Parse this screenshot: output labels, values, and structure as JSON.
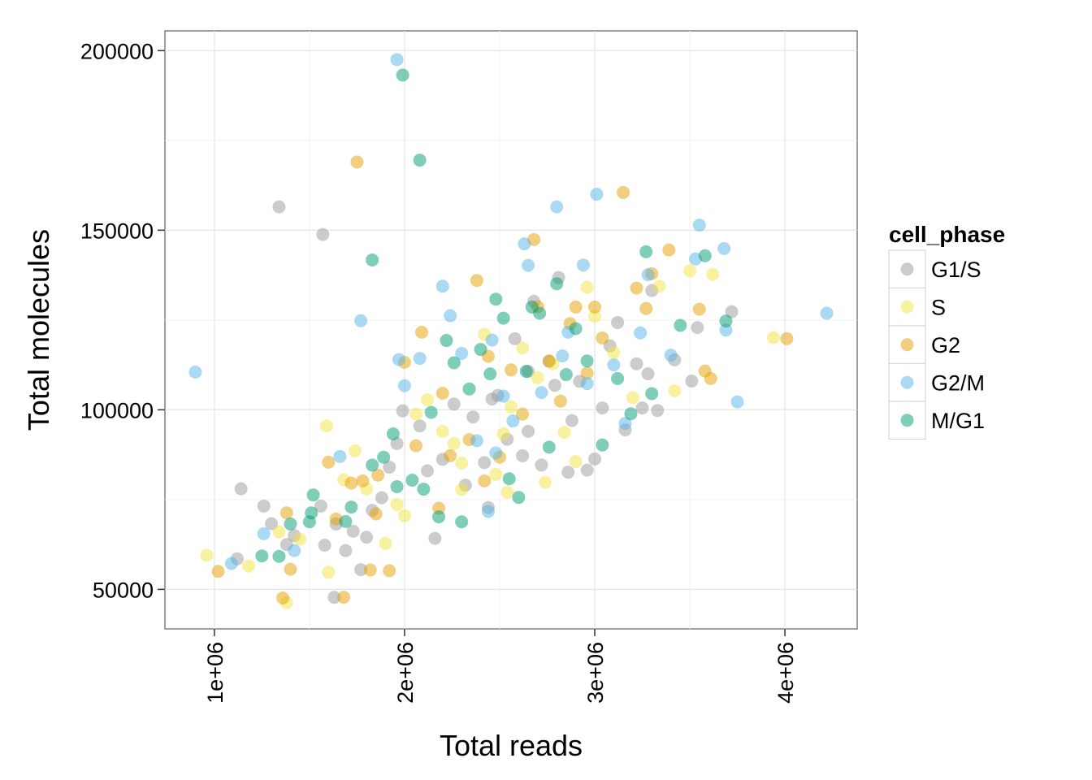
{
  "chart_data": {
    "type": "scatter",
    "title": "",
    "xlabel": "Total reads",
    "ylabel": "Total molecules",
    "xlim": [
      740000,
      4380000
    ],
    "ylim": [
      39000,
      205500
    ],
    "xticks": [
      1000000,
      2000000,
      3000000,
      4000000
    ],
    "xtick_labels": [
      "1e+06",
      "2e+06",
      "3e+06",
      "4e+06"
    ],
    "yticks": [
      50000,
      100000,
      150000,
      200000
    ],
    "ytick_labels": [
      "50000",
      "100000",
      "150000",
      "200000"
    ],
    "grid": true,
    "legend": {
      "title": "cell_phase",
      "position": "right"
    },
    "series": [
      {
        "name": "G1/S",
        "color": "#999999",
        "points": [
          [
            1340000,
            156500
          ],
          [
            1570000,
            148800
          ],
          [
            1140000,
            78000
          ],
          [
            1120000,
            58500
          ],
          [
            1260000,
            73200
          ],
          [
            1300000,
            68300
          ],
          [
            1380000,
            62500
          ],
          [
            1420000,
            65000
          ],
          [
            1560000,
            73200
          ],
          [
            1580000,
            62300
          ],
          [
            1640000,
            68200
          ],
          [
            1690000,
            60800
          ],
          [
            1730000,
            66200
          ],
          [
            1770000,
            55500
          ],
          [
            1800000,
            64500
          ],
          [
            1830000,
            72000
          ],
          [
            1880000,
            75500
          ],
          [
            1920000,
            84000
          ],
          [
            1960000,
            90600
          ],
          [
            1990000,
            99700
          ],
          [
            2080000,
            95500
          ],
          [
            2120000,
            83000
          ],
          [
            2160000,
            64200
          ],
          [
            2200000,
            86200
          ],
          [
            2260000,
            101600
          ],
          [
            2320000,
            79000
          ],
          [
            2360000,
            98000
          ],
          [
            2420000,
            85300
          ],
          [
            2440000,
            72800
          ],
          [
            2490000,
            104000
          ],
          [
            2540000,
            91800
          ],
          [
            2580000,
            119800
          ],
          [
            2620000,
            87200
          ],
          [
            2650000,
            110700
          ],
          [
            2680000,
            130200
          ],
          [
            2720000,
            84600
          ],
          [
            2760000,
            113500
          ],
          [
            2790000,
            106800
          ],
          [
            2810000,
            136800
          ],
          [
            2860000,
            82600
          ],
          [
            2880000,
            97000
          ],
          [
            2920000,
            107900
          ],
          [
            2960000,
            83200
          ],
          [
            3000000,
            86300
          ],
          [
            3040000,
            100500
          ],
          [
            3080000,
            117800
          ],
          [
            3120000,
            124300
          ],
          [
            3160000,
            94400
          ],
          [
            3220000,
            112800
          ],
          [
            3250000,
            100500
          ],
          [
            3280000,
            110000
          ],
          [
            3300000,
            133200
          ],
          [
            3330000,
            99800
          ],
          [
            3420000,
            113900
          ],
          [
            3510000,
            108000
          ],
          [
            3540000,
            122900
          ],
          [
            3720000,
            127300
          ],
          [
            1630000,
            47800
          ],
          [
            2460000,
            103000
          ],
          [
            2650000,
            94000
          ]
        ]
      },
      {
        "name": "S",
        "color": "#F0E442",
        "points": [
          [
            960000,
            59500
          ],
          [
            1180000,
            56500
          ],
          [
            1340000,
            66000
          ],
          [
            1380000,
            46300
          ],
          [
            1450000,
            64000
          ],
          [
            1590000,
            95500
          ],
          [
            1600000,
            54800
          ],
          [
            1680000,
            80500
          ],
          [
            1740000,
            88600
          ],
          [
            1800000,
            78000
          ],
          [
            1900000,
            62800
          ],
          [
            1960000,
            73600
          ],
          [
            2000000,
            70500
          ],
          [
            2060000,
            98800
          ],
          [
            2120000,
            102800
          ],
          [
            2200000,
            94000
          ],
          [
            2260000,
            90600
          ],
          [
            2300000,
            77800
          ],
          [
            2420000,
            121000
          ],
          [
            2480000,
            82000
          ],
          [
            2520000,
            93300
          ],
          [
            2560000,
            100800
          ],
          [
            2620000,
            117200
          ],
          [
            2700000,
            108900
          ],
          [
            2740000,
            79800
          ],
          [
            2780000,
            112800
          ],
          [
            2840000,
            93700
          ],
          [
            2900000,
            85600
          ],
          [
            2960000,
            134100
          ],
          [
            3000000,
            126000
          ],
          [
            3100000,
            115900
          ],
          [
            3200000,
            103400
          ],
          [
            3340000,
            134400
          ],
          [
            3420000,
            105300
          ],
          [
            3500000,
            138700
          ],
          [
            3620000,
            137700
          ],
          [
            3940000,
            120100
          ],
          [
            2300000,
            85200
          ],
          [
            2540000,
            77000
          ]
        ]
      },
      {
        "name": "G2",
        "color": "#E69F00",
        "points": [
          [
            1750000,
            169000
          ],
          [
            1020000,
            55000
          ],
          [
            1360000,
            47600
          ],
          [
            1380000,
            71300
          ],
          [
            1400000,
            55600
          ],
          [
            1600000,
            85400
          ],
          [
            1640000,
            69600
          ],
          [
            1680000,
            47800
          ],
          [
            1720000,
            79600
          ],
          [
            1780000,
            80200
          ],
          [
            1820000,
            55400
          ],
          [
            1860000,
            81800
          ],
          [
            1920000,
            55200
          ],
          [
            2000000,
            113200
          ],
          [
            2060000,
            90000
          ],
          [
            2090000,
            121600
          ],
          [
            2180000,
            72600
          ],
          [
            2200000,
            104600
          ],
          [
            2240000,
            87200
          ],
          [
            2340000,
            91700
          ],
          [
            2380000,
            136000
          ],
          [
            2440000,
            114900
          ],
          [
            2500000,
            86800
          ],
          [
            2560000,
            111100
          ],
          [
            2620000,
            98800
          ],
          [
            2680000,
            147400
          ],
          [
            2700000,
            128700
          ],
          [
            2760000,
            113600
          ],
          [
            2820000,
            102400
          ],
          [
            2870000,
            124000
          ],
          [
            2900000,
            128600
          ],
          [
            2960000,
            110200
          ],
          [
            3000000,
            128600
          ],
          [
            3040000,
            120000
          ],
          [
            3150000,
            160500
          ],
          [
            3220000,
            133900
          ],
          [
            3270000,
            128200
          ],
          [
            3300000,
            137900
          ],
          [
            3390000,
            144500
          ],
          [
            3550000,
            128000
          ],
          [
            3580000,
            110800
          ],
          [
            3610000,
            108700
          ],
          [
            4010000,
            119800
          ],
          [
            1850000,
            71000
          ],
          [
            2420000,
            80200
          ]
        ]
      },
      {
        "name": "G2/M",
        "color": "#56B4E9",
        "points": [
          [
            1960000,
            197500
          ],
          [
            900000,
            110500
          ],
          [
            1090000,
            57200
          ],
          [
            1260000,
            65500
          ],
          [
            1420000,
            60800
          ],
          [
            1660000,
            87000
          ],
          [
            1770000,
            124800
          ],
          [
            1970000,
            114000
          ],
          [
            2000000,
            106700
          ],
          [
            2080000,
            114300
          ],
          [
            2200000,
            134400
          ],
          [
            2240000,
            126200
          ],
          [
            2300000,
            115700
          ],
          [
            2380000,
            91400
          ],
          [
            2460000,
            119400
          ],
          [
            2520000,
            103800
          ],
          [
            2570000,
            96900
          ],
          [
            2630000,
            146200
          ],
          [
            2650000,
            140200
          ],
          [
            2720000,
            104800
          ],
          [
            2800000,
            156500
          ],
          [
            2830000,
            115000
          ],
          [
            2860000,
            121600
          ],
          [
            2940000,
            140300
          ],
          [
            2960000,
            107300
          ],
          [
            3010000,
            160000
          ],
          [
            3100000,
            112500
          ],
          [
            3160000,
            96200
          ],
          [
            3240000,
            121400
          ],
          [
            3280000,
            137600
          ],
          [
            3400000,
            115200
          ],
          [
            3530000,
            142000
          ],
          [
            3550000,
            151400
          ],
          [
            3680000,
            144900
          ],
          [
            3690000,
            122200
          ],
          [
            3750000,
            102200
          ],
          [
            4220000,
            126900
          ],
          [
            2440000,
            71700
          ],
          [
            2480000,
            88000
          ]
        ]
      },
      {
        "name": "M/G1",
        "color": "#009E73",
        "points": [
          [
            1990000,
            193200
          ],
          [
            2080000,
            169500
          ],
          [
            1830000,
            141700
          ],
          [
            1250000,
            59300
          ],
          [
            1340000,
            59200
          ],
          [
            1400000,
            68200
          ],
          [
            1500000,
            68800
          ],
          [
            1520000,
            76300
          ],
          [
            1690000,
            68900
          ],
          [
            1720000,
            72900
          ],
          [
            1830000,
            84600
          ],
          [
            1890000,
            86800
          ],
          [
            1940000,
            93300
          ],
          [
            1960000,
            78600
          ],
          [
            2040000,
            80400
          ],
          [
            2100000,
            77900
          ],
          [
            2140000,
            99300
          ],
          [
            2180000,
            70200
          ],
          [
            2220000,
            119300
          ],
          [
            2260000,
            113100
          ],
          [
            2300000,
            68800
          ],
          [
            2340000,
            105800
          ],
          [
            2400000,
            116800
          ],
          [
            2450000,
            110000
          ],
          [
            2480000,
            130800
          ],
          [
            2520000,
            125500
          ],
          [
            2550000,
            80800
          ],
          [
            2600000,
            75600
          ],
          [
            2640000,
            110700
          ],
          [
            2670000,
            128600
          ],
          [
            2710000,
            126900
          ],
          [
            2760000,
            89600
          ],
          [
            2800000,
            135100
          ],
          [
            2850000,
            109800
          ],
          [
            2900000,
            122600
          ],
          [
            2960000,
            113600
          ],
          [
            3040000,
            90200
          ],
          [
            3120000,
            108700
          ],
          [
            3190000,
            98900
          ],
          [
            3270000,
            144000
          ],
          [
            3300000,
            104500
          ],
          [
            3450000,
            123500
          ],
          [
            3580000,
            142900
          ],
          [
            3690000,
            124700
          ],
          [
            1510000,
            71300
          ]
        ]
      }
    ]
  }
}
